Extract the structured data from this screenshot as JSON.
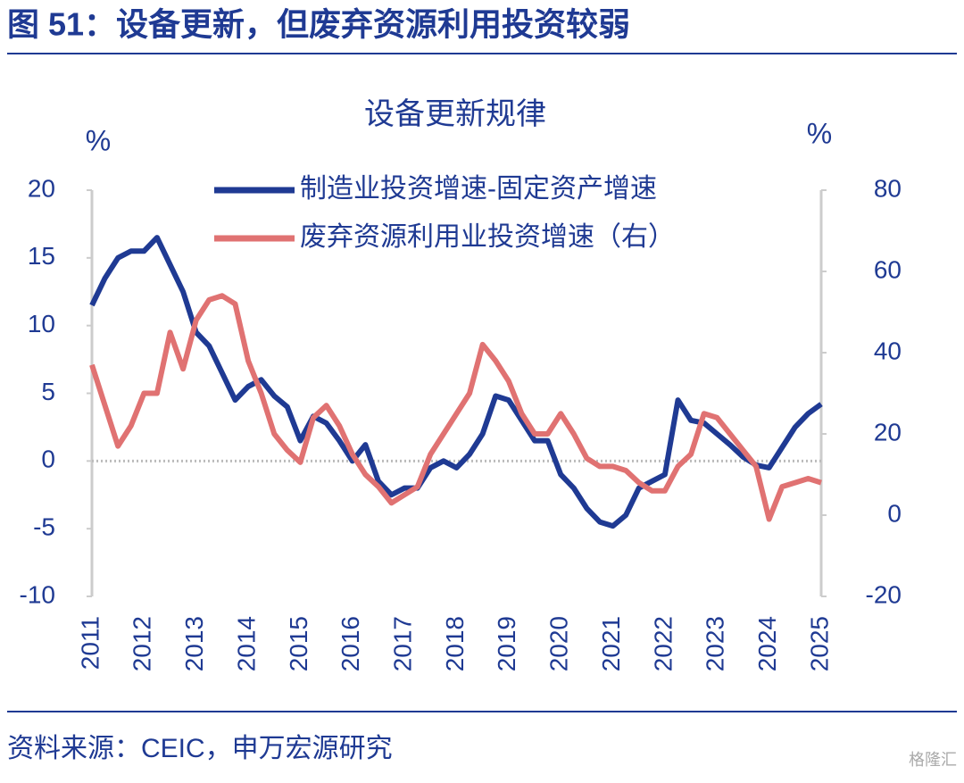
{
  "figure_title": "图 51：设备更新，但废弃资源利用投资较弱",
  "source": "资料来源：CEIC，申万宏源研究",
  "watermark": "格隆汇",
  "chart_data": {
    "type": "line",
    "title": "设备更新规律",
    "ylabel": "%",
    "y2label": "%",
    "x": [
      2011,
      2011.25,
      2011.5,
      2011.75,
      2012,
      2012.25,
      2012.5,
      2012.75,
      2013,
      2013.25,
      2013.5,
      2013.75,
      2014,
      2014.25,
      2014.5,
      2014.75,
      2015,
      2015.25,
      2015.5,
      2015.75,
      2016,
      2016.25,
      2016.5,
      2016.75,
      2017,
      2017.25,
      2017.5,
      2017.75,
      2018,
      2018.25,
      2018.5,
      2018.75,
      2019,
      2019.25,
      2019.5,
      2019.75,
      2020,
      2020.25,
      2020.5,
      2020.75,
      2021,
      2021.25,
      2021.5,
      2021.75,
      2022,
      2022.25,
      2022.5,
      2022.75,
      2023,
      2023.25,
      2023.5,
      2023.75,
      2024,
      2024.25,
      2024.5,
      2024.75,
      2025
    ],
    "xlim": [
      2011,
      2025
    ],
    "xticks": [
      2011,
      2012,
      2013,
      2014,
      2015,
      2016,
      2017,
      2018,
      2019,
      2020,
      2021,
      2022,
      2023,
      2024,
      2025
    ],
    "ylim": [
      -10,
      20
    ],
    "yticks": [
      -10,
      -5,
      0,
      5,
      10,
      15,
      20
    ],
    "y2lim": [
      -20,
      80
    ],
    "y2ticks": [
      -20,
      0,
      20,
      40,
      60,
      80
    ],
    "legend": "top",
    "series": [
      {
        "name": "制造业投资增速-固定资产增速",
        "color": "#1f3a93",
        "values": [
          11.5,
          13.5,
          15,
          15.5,
          15.5,
          16.5,
          14.5,
          12.5,
          9.5,
          8.5,
          6.5,
          4.5,
          5.5,
          6,
          4.8,
          4,
          1.5,
          3.3,
          2.8,
          1.5,
          0,
          1.2,
          -1.5,
          -2.5,
          -2,
          -2,
          -0.5,
          0,
          -0.5,
          0.5,
          2,
          4.8,
          4.5,
          3,
          1.5,
          1.5,
          -1,
          -2,
          -3.5,
          -4.5,
          -4.8,
          -4,
          -2,
          -1.5,
          -1,
          4.5,
          3,
          2.8,
          2,
          1.2,
          0.3,
          -0.3,
          -0.5,
          1,
          2.5,
          3.5,
          4.2
        ]
      },
      {
        "name": "废弃资源利用业投资增速（右）",
        "color": "#e07272",
        "axis": "y2",
        "values": [
          37,
          27,
          17,
          22,
          30,
          30,
          45,
          36,
          48,
          53,
          54,
          52,
          38,
          30,
          20,
          16,
          13,
          24,
          27,
          22,
          15,
          10,
          7,
          3,
          5,
          7,
          15,
          20,
          25,
          30,
          42,
          38,
          33,
          25,
          20,
          20,
          25,
          20,
          14,
          12,
          12,
          11,
          8,
          6,
          6,
          12,
          15,
          25,
          24,
          20,
          16,
          12,
          -1,
          7,
          8,
          9,
          8
        ]
      }
    ]
  }
}
